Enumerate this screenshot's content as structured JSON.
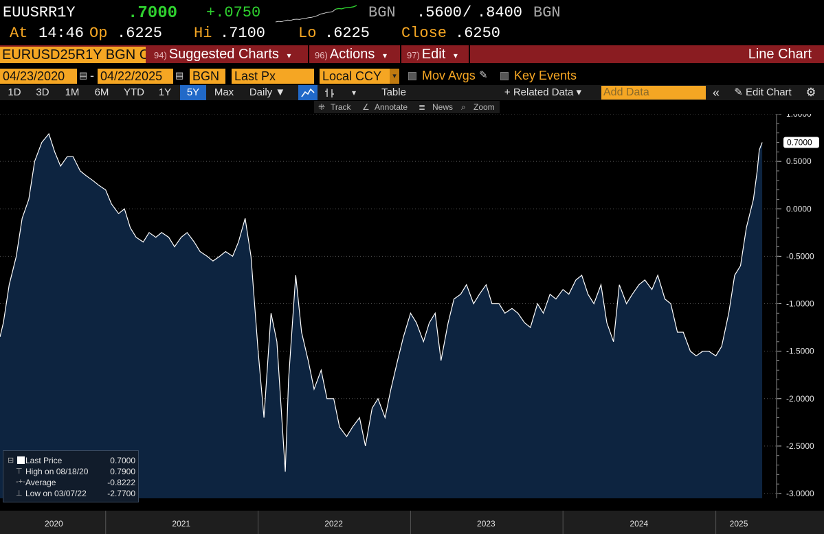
{
  "quote": {
    "ticker": "EUUSRR1Y",
    "last": ".7000",
    "change": "+.0750",
    "source1": "BGN",
    "bid": ".5600",
    "slash": "/",
    "ask": ".8400",
    "source2": "BGN",
    "at_label": "At",
    "time": "14:46",
    "open_label": "Op",
    "open": ".6225",
    "high_label": "Hi",
    "high": ".7100",
    "low_label": "Lo",
    "low": ".6225",
    "close_label": "Close",
    "close": ".6250"
  },
  "menu": {
    "security": "EURUSD25R1Y BGN C",
    "suggested_num": "94)",
    "suggested": "Suggested Charts",
    "actions_num": "96)",
    "actions": "Actions",
    "edit_num": "97)",
    "edit": "Edit",
    "chart_type": "Line Chart"
  },
  "controls": {
    "start_date": "04/23/2020",
    "dash": "-",
    "end_date": "04/22/2025",
    "source": "BGN",
    "field": "Last Px",
    "currency": "Local CCY",
    "mov_avgs": "Mov Avgs",
    "key_events": "Key Events"
  },
  "periods": [
    "1D",
    "3D",
    "1M",
    "6M",
    "YTD",
    "1Y",
    "5Y",
    "Max"
  ],
  "active_period": "5Y",
  "toolbar": {
    "frequency": "Daily ▼",
    "table": "Table",
    "related": "+ Related Data ▾",
    "add_data_placeholder": "Add Data",
    "edit_chart": "Edit Chart"
  },
  "tools": {
    "track": "Track",
    "annotate": "Annotate",
    "news": "News",
    "zoom": "Zoom"
  },
  "legend": {
    "last_label": "Last Price",
    "last_value": "0.7000",
    "high_label": "High on 08/18/20",
    "high_value": "0.7900",
    "avg_label": "Average",
    "avg_value": "-0.8222",
    "low_label": "Low on 03/07/22",
    "low_value": "-2.7700"
  },
  "colors": {
    "area_fill": "#0d2440",
    "line": "#ffffff",
    "accent_orange": "#f5a623",
    "menu_red": "#8a1c21",
    "up_green": "#2fd12f",
    "active_blue": "#2169c8"
  },
  "chart_data": {
    "type": "area",
    "series": [
      {
        "name": "Last Price",
        "x": [
          "2020-04-23",
          "2020-05-01",
          "2020-05-15",
          "2020-06-01",
          "2020-06-15",
          "2020-07-01",
          "2020-07-15",
          "2020-08-01",
          "2020-08-18",
          "2020-09-01",
          "2020-09-15",
          "2020-10-01",
          "2020-10-15",
          "2020-11-01",
          "2020-11-15",
          "2020-12-01",
          "2020-12-15",
          "2021-01-01",
          "2021-01-15",
          "2021-02-01",
          "2021-02-15",
          "2021-03-01",
          "2021-03-15",
          "2021-04-01",
          "2021-04-15",
          "2021-05-01",
          "2021-05-15",
          "2021-06-01",
          "2021-06-15",
          "2021-07-01",
          "2021-07-15",
          "2021-08-01",
          "2021-08-15",
          "2021-09-01",
          "2021-09-15",
          "2021-10-01",
          "2021-10-15",
          "2021-11-01",
          "2021-11-15",
          "2021-12-01",
          "2021-12-15",
          "2022-01-01",
          "2022-01-15",
          "2022-02-01",
          "2022-02-15",
          "2022-03-07",
          "2022-03-15",
          "2022-04-01",
          "2022-04-15",
          "2022-05-01",
          "2022-05-15",
          "2022-06-01",
          "2022-06-15",
          "2022-07-01",
          "2022-07-15",
          "2022-08-01",
          "2022-08-15",
          "2022-09-01",
          "2022-09-15",
          "2022-10-01",
          "2022-10-15",
          "2022-11-01",
          "2022-11-15",
          "2022-12-01",
          "2022-12-15",
          "2023-01-01",
          "2023-01-15",
          "2023-02-01",
          "2023-02-15",
          "2023-03-01",
          "2023-03-15",
          "2023-04-01",
          "2023-04-15",
          "2023-05-01",
          "2023-05-15",
          "2023-06-01",
          "2023-06-15",
          "2023-07-01",
          "2023-07-15",
          "2023-08-01",
          "2023-08-15",
          "2023-09-01",
          "2023-09-15",
          "2023-10-01",
          "2023-10-15",
          "2023-11-01",
          "2023-11-15",
          "2023-12-01",
          "2023-12-15",
          "2024-01-01",
          "2024-01-15",
          "2024-02-01",
          "2024-02-15",
          "2024-03-01",
          "2024-03-15",
          "2024-04-01",
          "2024-04-15",
          "2024-05-01",
          "2024-05-15",
          "2024-06-01",
          "2024-06-15",
          "2024-07-01",
          "2024-07-15",
          "2024-08-01",
          "2024-08-15",
          "2024-09-01",
          "2024-09-15",
          "2024-10-01",
          "2024-10-15",
          "2024-11-01",
          "2024-11-15",
          "2024-12-01",
          "2024-12-15",
          "2025-01-01",
          "2025-01-15",
          "2025-02-01",
          "2025-02-15",
          "2025-03-01",
          "2025-03-15",
          "2025-04-01",
          "2025-04-10",
          "2025-04-15",
          "2025-04-22"
        ],
        "y": [
          -1.35,
          -1.2,
          -0.8,
          -0.5,
          -0.1,
          0.1,
          0.5,
          0.7,
          0.79,
          0.6,
          0.45,
          0.55,
          0.55,
          0.4,
          0.35,
          0.3,
          0.25,
          0.2,
          0.05,
          -0.05,
          0.0,
          -0.2,
          -0.3,
          -0.35,
          -0.25,
          -0.3,
          -0.25,
          -0.3,
          -0.4,
          -0.3,
          -0.25,
          -0.35,
          -0.45,
          -0.5,
          -0.55,
          -0.5,
          -0.45,
          -0.5,
          -0.35,
          -0.1,
          -0.5,
          -1.5,
          -2.2,
          -1.1,
          -1.4,
          -2.77,
          -1.8,
          -0.7,
          -1.3,
          -1.6,
          -1.9,
          -1.7,
          -2.0,
          -2.0,
          -2.3,
          -2.4,
          -2.3,
          -2.2,
          -2.5,
          -2.1,
          -2.0,
          -2.2,
          -1.9,
          -1.6,
          -1.35,
          -1.1,
          -1.2,
          -1.4,
          -1.2,
          -1.1,
          -1.6,
          -1.2,
          -0.95,
          -0.9,
          -0.8,
          -1.0,
          -0.9,
          -0.8,
          -1.0,
          -1.0,
          -1.1,
          -1.05,
          -1.1,
          -1.2,
          -1.25,
          -1.0,
          -1.1,
          -0.9,
          -0.95,
          -0.85,
          -0.9,
          -0.75,
          -0.7,
          -0.9,
          -1.0,
          -0.8,
          -1.2,
          -1.4,
          -0.8,
          -1.0,
          -0.9,
          -0.8,
          -0.75,
          -0.85,
          -0.7,
          -0.95,
          -1.0,
          -1.3,
          -1.3,
          -1.5,
          -1.55,
          -1.5,
          -1.5,
          -1.55,
          -1.45,
          -1.1,
          -0.7,
          -0.6,
          -0.2,
          0.1,
          0.4,
          0.62,
          0.7
        ]
      }
    ],
    "x_tick_labels": [
      "2020",
      "2021",
      "2022",
      "2023",
      "2024",
      "2025"
    ],
    "y_ticks": [
      1.0,
      0.5,
      0.0,
      -0.5,
      -1.0,
      -1.5,
      -2.0,
      -2.5,
      -3.0
    ],
    "y_tick_labels": [
      "1.0000",
      "0.5000",
      "0.0000",
      "-0.5000",
      "-1.0000",
      "-1.5000",
      "-2.0000",
      "-2.5000",
      "-3.0000"
    ],
    "ylim": [
      -3.0,
      1.0
    ],
    "xlim": [
      "2020-04-23",
      "2025-05-10"
    ],
    "last_value_label": "0.7000",
    "grid": true
  },
  "sparkline": [
    -2.0,
    -1.9,
    -1.95,
    -1.8,
    -1.7,
    -1.75,
    -1.6,
    -1.55,
    -1.6,
    -1.45,
    -1.4,
    -1.3,
    -1.25,
    -1.1,
    -0.95,
    -0.7,
    -0.6,
    -0.45,
    -0.4,
    -0.3,
    0.1,
    0.2,
    0.15,
    0.3,
    0.35,
    0.4,
    0.5,
    0.7
  ]
}
